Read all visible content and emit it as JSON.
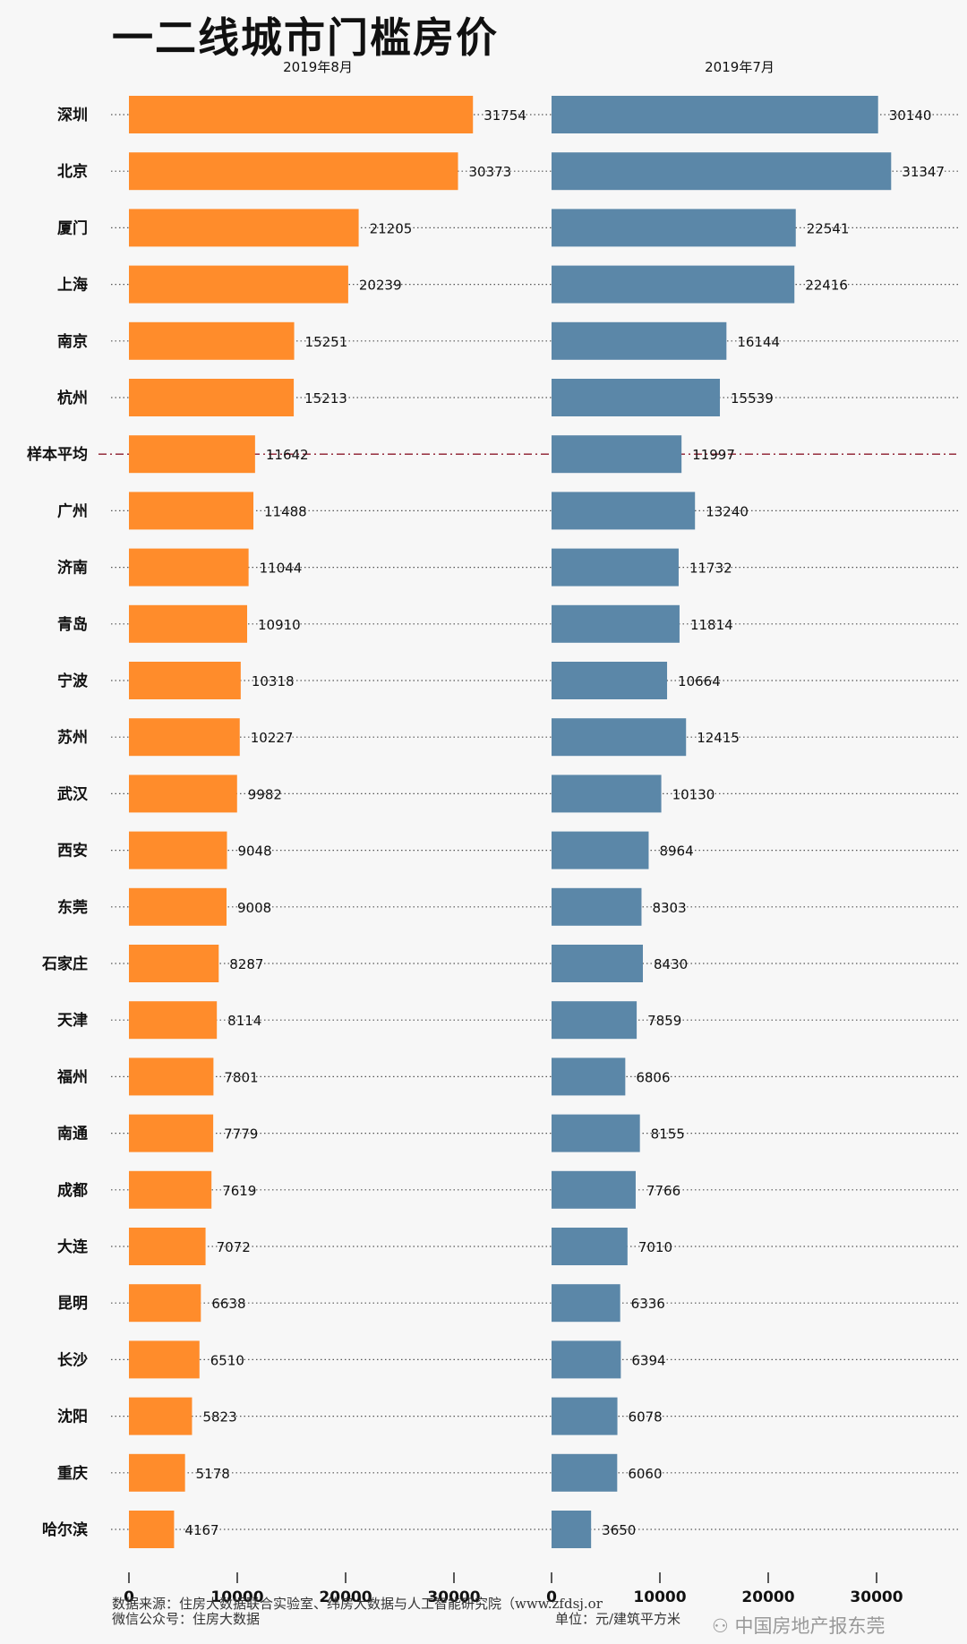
{
  "title": "一二线城市门槛房价",
  "footer": {
    "source": "数据来源：住房大数据联合实验室、纬房大数据与人工智能研究院（www.zfdsj.or",
    "wechat": "微信公众号：住房大数据",
    "unit": "单位：元/建筑平方米",
    "watermark": "中国房地产报东莞"
  },
  "chart_data": {
    "type": "bar",
    "orientation": "horizontal",
    "categories": [
      "深圳",
      "北京",
      "厦门",
      "上海",
      "南京",
      "杭州",
      "样本平均",
      "广州",
      "济南",
      "青岛",
      "宁波",
      "苏州",
      "武汉",
      "西安",
      "东莞",
      "石家庄",
      "天津",
      "福州",
      "南通",
      "成都",
      "大连",
      "昆明",
      "长沙",
      "沈阳",
      "重庆",
      "哈尔滨"
    ],
    "average_category": "样本平均",
    "series": [
      {
        "name": "2019年8月",
        "color": "#ff8c2b",
        "values": [
          31754,
          30373,
          21205,
          20239,
          15251,
          15213,
          11642,
          11488,
          11044,
          10910,
          10318,
          10227,
          9982,
          9048,
          9008,
          8287,
          8114,
          7801,
          7779,
          7619,
          7072,
          6638,
          6510,
          5823,
          5178,
          4167
        ]
      },
      {
        "name": "2019年7月",
        "color": "#5b87a8",
        "values": [
          30140,
          31347,
          22541,
          22416,
          16144,
          15539,
          11997,
          13240,
          11732,
          11814,
          10664,
          12415,
          10130,
          8964,
          8303,
          8430,
          7859,
          6806,
          8155,
          7766,
          7010,
          6336,
          6394,
          6078,
          6060,
          3650
        ]
      }
    ],
    "xlim": [
      0,
      38000
    ],
    "xticks": [
      0,
      10000,
      20000,
      30000
    ],
    "grid": "dotted-row-leaders",
    "reference_line": "样本平均 dashed"
  }
}
